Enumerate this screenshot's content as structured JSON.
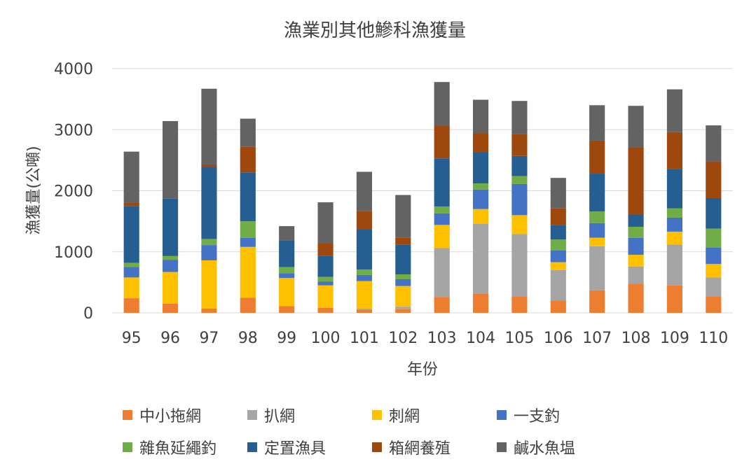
{
  "chart_data": {
    "type": "bar",
    "stacked": true,
    "title": "漁業別其他鰺科漁獲量",
    "xlabel": "年份",
    "ylabel": "漁獲量(公噸)",
    "ylim": [
      0,
      4000
    ],
    "yticks": [
      0,
      1000,
      2000,
      3000,
      4000
    ],
    "grid": true,
    "legend_position": "bottom",
    "categories": [
      "95",
      "96",
      "97",
      "98",
      "99",
      "100",
      "101",
      "102",
      "103",
      "104",
      "105",
      "106",
      "107",
      "108",
      "109",
      "110"
    ],
    "series": [
      {
        "name": "中小拖網",
        "color": "#ED7D31",
        "values": [
          240,
          150,
          70,
          250,
          110,
          80,
          50,
          60,
          260,
          310,
          270,
          200,
          370,
          480,
          450,
          270
        ]
      },
      {
        "name": "扒網",
        "color": "#A5A5A5",
        "values": [
          0,
          0,
          0,
          0,
          0,
          0,
          20,
          40,
          800,
          1150,
          1020,
          500,
          720,
          280,
          670,
          310
        ]
      },
      {
        "name": "刺網",
        "color": "#FFC000",
        "values": [
          340,
          520,
          790,
          830,
          460,
          370,
          450,
          340,
          380,
          240,
          310,
          130,
          140,
          190,
          210,
          220
        ]
      },
      {
        "name": "一支釣",
        "color": "#4472C4",
        "values": [
          170,
          200,
          250,
          150,
          80,
          60,
          100,
          110,
          190,
          320,
          510,
          190,
          240,
          280,
          230,
          270
        ]
      },
      {
        "name": "雜魚延繩釣",
        "color": "#70AD47",
        "values": [
          70,
          60,
          100,
          270,
          100,
          80,
          90,
          80,
          110,
          100,
          130,
          180,
          190,
          180,
          150,
          310
        ]
      },
      {
        "name": "定置漁具",
        "color": "#255E91",
        "values": [
          930,
          940,
          1180,
          800,
          440,
          340,
          660,
          490,
          790,
          510,
          330,
          240,
          620,
          200,
          650,
          500
        ]
      },
      {
        "name": "箱網養殖",
        "color": "#9E480E",
        "values": [
          60,
          0,
          40,
          420,
          0,
          210,
          300,
          110,
          530,
          310,
          360,
          270,
          540,
          1100,
          600,
          600
        ]
      },
      {
        "name": "鹹水魚塭",
        "color": "#636363",
        "values": [
          830,
          1270,
          1240,
          460,
          230,
          670,
          640,
          700,
          720,
          550,
          540,
          500,
          580,
          680,
          700,
          590
        ]
      }
    ]
  }
}
